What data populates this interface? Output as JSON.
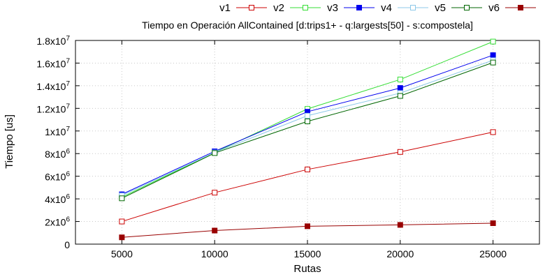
{
  "chart_data": {
    "type": "line",
    "title": "Tiempo en Operación AllContained [d:trips1+ - q:largests[50] - s:compostela]",
    "xlabel": "Rutas",
    "ylabel": "Tiempo [us]",
    "x": [
      5000,
      10000,
      15000,
      20000,
      25000
    ],
    "xlim": [
      2500,
      27500
    ],
    "ylim": [
      0,
      18000000
    ],
    "x_ticks": [
      "5000",
      "10000",
      "15000",
      "20000",
      "25000"
    ],
    "y_ticks": [
      {
        "value": 0,
        "mant": "0",
        "exp": ""
      },
      {
        "value": 2000000,
        "mant": "2x10",
        "exp": "6"
      },
      {
        "value": 4000000,
        "mant": "4x10",
        "exp": "6"
      },
      {
        "value": 6000000,
        "mant": "6x10",
        "exp": "6"
      },
      {
        "value": 8000000,
        "mant": "8x10",
        "exp": "6"
      },
      {
        "value": 10000000,
        "mant": "1x10",
        "exp": "7"
      },
      {
        "value": 12000000,
        "mant": "1.2x10",
        "exp": "7"
      },
      {
        "value": 14000000,
        "mant": "1.4x10",
        "exp": "7"
      },
      {
        "value": 16000000,
        "mant": "1.6x10",
        "exp": "7"
      },
      {
        "value": 18000000,
        "mant": "1.8x10",
        "exp": "7"
      }
    ],
    "grid": true,
    "legend_position": "top",
    "series": [
      {
        "name": "v1",
        "color": "#cc0000",
        "marker": "open-square",
        "values": [
          2000000,
          4550000,
          6600000,
          8150000,
          9900000
        ]
      },
      {
        "name": "v2",
        "color": "#33dd33",
        "marker": "open-square",
        "values": [
          4150000,
          8100000,
          11950000,
          14550000,
          17900000
        ]
      },
      {
        "name": "v3",
        "color": "#0000ee",
        "marker": "filled-square",
        "values": [
          4400000,
          8200000,
          11700000,
          13800000,
          16700000
        ]
      },
      {
        "name": "v4",
        "color": "#8cc8e8",
        "marker": "open-square",
        "values": [
          4300000,
          8100000,
          11350000,
          13350000,
          16250000
        ]
      },
      {
        "name": "v5",
        "color": "#006600",
        "marker": "open-square",
        "values": [
          4050000,
          8050000,
          10850000,
          13100000,
          16050000
        ]
      },
      {
        "name": "v6",
        "color": "#990000",
        "marker": "filled-square",
        "values": [
          600000,
          1200000,
          1580000,
          1700000,
          1850000
        ]
      }
    ]
  }
}
